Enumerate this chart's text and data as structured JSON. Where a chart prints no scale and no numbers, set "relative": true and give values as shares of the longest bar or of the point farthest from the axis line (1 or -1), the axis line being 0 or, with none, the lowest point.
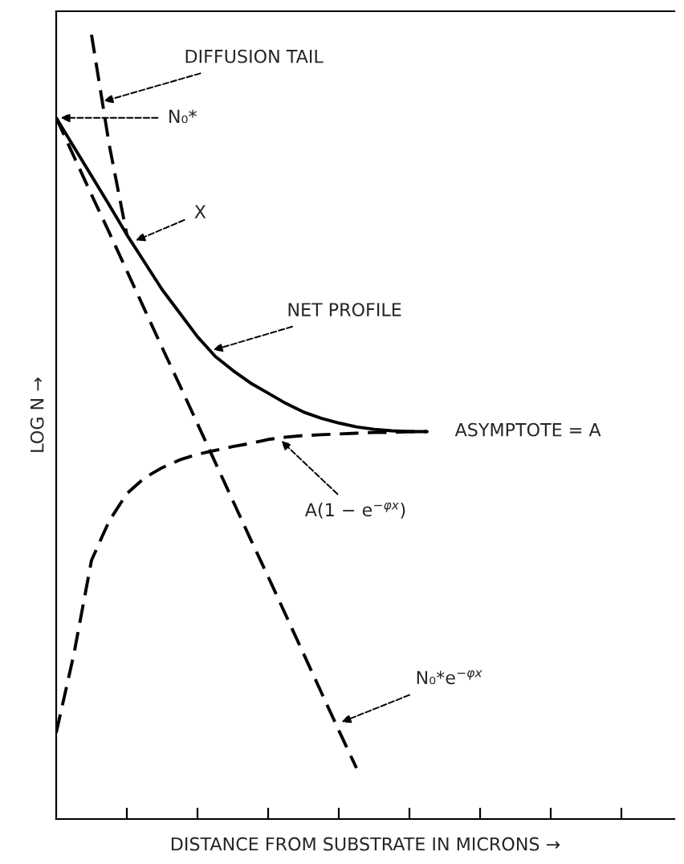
{
  "chart_data": {
    "type": "line",
    "relative": true,
    "xlabel": "DISTANCE FROM SUBSTRATE IN MICRONS →",
    "ylabel": "LOG N →",
    "categories": [
      null,
      null,
      null,
      null,
      null,
      null,
      null,
      null,
      null,
      null,
      null,
      null,
      null,
      null,
      null,
      null,
      null,
      null,
      null,
      null,
      null,
      null,
      null,
      null,
      null,
      null,
      null,
      null,
      null,
      null,
      null,
      null,
      null,
      null,
      null,
      null
    ],
    "tick_labels": false,
    "grid": false,
    "legend": false,
    "series": [
      {
        "color": "#000000",
        "line_style": "dashed",
        "values": [
          null,
          null,
          1.0,
          0.86,
          0.745,
          null,
          null,
          null,
          null,
          null,
          null,
          null,
          null,
          null,
          null,
          null,
          null,
          null,
          null,
          null,
          null,
          null,
          null,
          null,
          null,
          null,
          null,
          null,
          null,
          null,
          null,
          null,
          null,
          null,
          null,
          null
        ]
      },
      {
        "color": "#000000",
        "line_style": "solid",
        "values": [
          0.894,
          0.857,
          0.82,
          0.783,
          0.745,
          0.71,
          0.675,
          0.645,
          0.615,
          0.59,
          0.572,
          0.556,
          0.543,
          0.53,
          0.519,
          0.511,
          0.505,
          0.5,
          0.497,
          0.495,
          0.494,
          0.494,
          null,
          null,
          null,
          null,
          null,
          null,
          null,
          null,
          null,
          null,
          null,
          null,
          null,
          null
        ]
      },
      {
        "color": "#000000",
        "line_style": "dashed",
        "values": [
          0.11,
          0.21,
          0.33,
          0.38,
          0.415,
          0.435,
          0.448,
          0.458,
          0.465,
          0.47,
          0.475,
          0.479,
          0.484,
          0.487,
          0.489,
          0.49,
          0.491,
          0.492,
          0.493,
          0.493,
          0.494,
          0.494,
          null,
          null,
          null,
          null,
          null,
          null,
          null,
          null,
          null,
          null,
          null,
          null,
          null,
          null
        ]
      },
      {
        "color": "#000000",
        "line_style": "dashed",
        "values": [
          0.894,
          0.845,
          0.796,
          0.748,
          0.699,
          0.65,
          0.601,
          0.553,
          0.504,
          0.455,
          0.406,
          0.357,
          0.309,
          0.26,
          0.211,
          0.162,
          0.113,
          0.065,
          null,
          null,
          null,
          null,
          null,
          null,
          null,
          null,
          null,
          null,
          null,
          null,
          null,
          null,
          null,
          null,
          null,
          null
        ]
      }
    ],
    "annotations": [
      "DIFFUSION TAIL",
      "N₀*",
      "X",
      "NET PROFILE",
      "ASYMPTOTE = A",
      "A(1 − e$^{−φx}$)",
      "N₀*e$^{−φx}$"
    ]
  }
}
